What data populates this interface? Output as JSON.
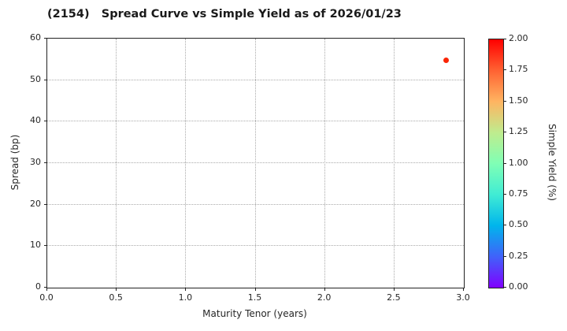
{
  "title": "(2154)   Spread Curve vs Simple Yield as of 2026/01/23",
  "chart_data": {
    "type": "scatter",
    "title": "(2154)   Spread Curve vs Simple Yield as of 2026/01/23",
    "xlabel": "Maturity Tenor (years)",
    "ylabel": "Spread (bp)",
    "xlim": [
      0.0,
      3.0
    ],
    "ylim": [
      0,
      60
    ],
    "x_ticks": [
      0.0,
      0.5,
      1.0,
      1.5,
      2.0,
      2.5,
      3.0
    ],
    "x_tick_labels": [
      "0.0",
      "0.5",
      "1.0",
      "1.5",
      "2.0",
      "2.5",
      "3.0"
    ],
    "y_ticks": [
      0,
      10,
      20,
      30,
      40,
      50,
      60
    ],
    "y_tick_labels": [
      "0",
      "10",
      "20",
      "30",
      "40",
      "50",
      "60"
    ],
    "grid": true,
    "grid_style": "dotted",
    "points": [
      {
        "x": 2.88,
        "y": 54.5,
        "simple_yield": 1.95,
        "color": "#fa2505"
      }
    ],
    "colorbar": {
      "label": "Simple Yield (%)",
      "min": 0.0,
      "max": 2.0,
      "tick_labels": [
        "0.00",
        "0.25",
        "0.50",
        "0.75",
        "1.00",
        "1.25",
        "1.50",
        "1.75",
        "2.00"
      ],
      "colormap": "rainbow",
      "gradient_stops": [
        {
          "pos": 0.0,
          "color": "#8000ff"
        },
        {
          "pos": 0.125,
          "color": "#4062fa"
        },
        {
          "pos": 0.25,
          "color": "#00b5ec"
        },
        {
          "pos": 0.375,
          "color": "#40ecd4"
        },
        {
          "pos": 0.5,
          "color": "#80ffb5"
        },
        {
          "pos": 0.625,
          "color": "#bfec8e"
        },
        {
          "pos": 0.75,
          "color": "#ffb461"
        },
        {
          "pos": 0.875,
          "color": "#ff6232"
        },
        {
          "pos": 1.0,
          "color": "#ff0000"
        }
      ]
    },
    "frame_color": "#222222",
    "grid_color": "#aaaaaa"
  }
}
